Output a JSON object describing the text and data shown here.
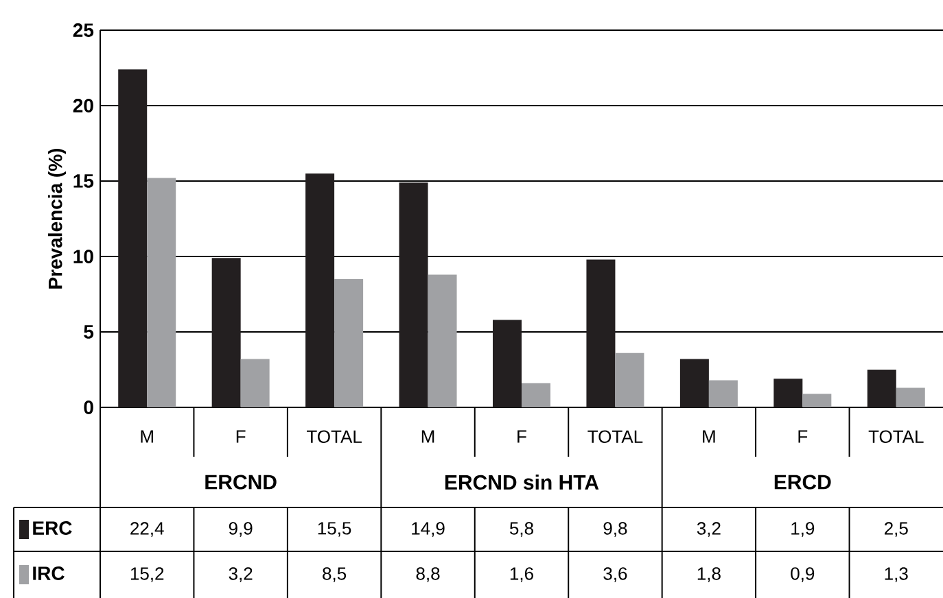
{
  "chart_data": {
    "type": "bar",
    "ylabel": "Prevalencia (%)",
    "categories": [
      "M",
      "F",
      "TOTAL",
      "M",
      "F",
      "TOTAL",
      "M",
      "F",
      "TOTAL"
    ],
    "series": [
      {
        "name": "ERC",
        "color": "#231f20",
        "values": [
          22.4,
          9.9,
          15.5,
          14.9,
          5.8,
          9.8,
          3.2,
          1.9,
          2.5
        ],
        "value_labels": [
          "22,4",
          "9,9",
          "15,5",
          "14,9",
          "5,8",
          "9,8",
          "3,2",
          "1,9",
          "2,5"
        ]
      },
      {
        "name": "IRC",
        "color": "#a0a1a4",
        "values": [
          15.2,
          3.2,
          8.5,
          8.8,
          1.6,
          3.6,
          1.8,
          0.9,
          1.3
        ],
        "value_labels": [
          "15,2",
          "3,2",
          "8,5",
          "8,8",
          "1,6",
          "3,6",
          "1,8",
          "0,9",
          "1,3"
        ]
      }
    ],
    "annotations": [
      "ERCND",
      "ERCND sin HTA",
      "ERCD"
    ],
    "ylim": [
      0,
      25
    ],
    "yticks": [
      0,
      5,
      10,
      15,
      20,
      25
    ],
    "grid": "y",
    "legend": "bottom left"
  }
}
